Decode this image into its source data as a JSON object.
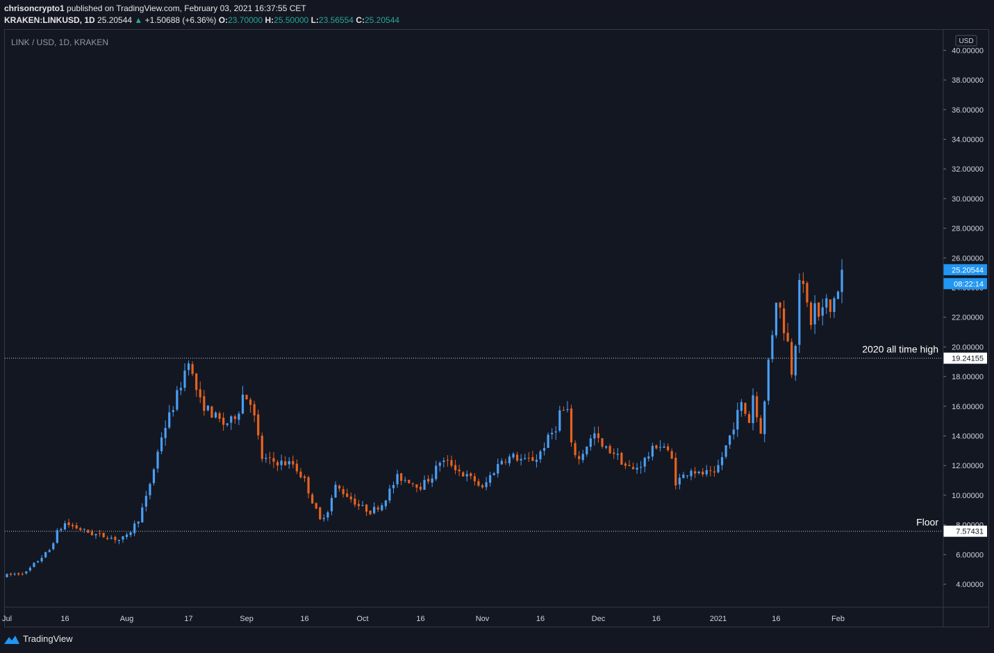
{
  "header": {
    "author": "chrisoncrypto1",
    "published_text": "published on TradingView.com, February 03, 2021 16:37:55 CET",
    "symbol": "KRAKEN:LINKUSD, 1D",
    "last": "25.20544",
    "change": "+1.50688 (+6.36%)",
    "o_label": "O:",
    "o_value": "23.70000",
    "h_label": "H:",
    "h_value": "25.50000",
    "l_label": "L:",
    "l_value": "23.56554",
    "c_label": "C:",
    "c_value": "25.20544"
  },
  "legend": "LINK / USD, 1D, KRAKEN",
  "currency_label": "USD",
  "footer": {
    "brand": "TradingView"
  },
  "colors": {
    "up": "#4a9ff5",
    "down": "#e8631f",
    "bg": "#131722",
    "axis_text": "#d1d4dc",
    "grid_border": "#363a45"
  },
  "chart_data": {
    "type": "candlestick",
    "title": "LINK / USD, 1D, KRAKEN",
    "ylim": [
      2.0,
      41.0
    ],
    "y_ticks": [
      "4.00000",
      "6.00000",
      "8.00000",
      "10.00000",
      "12.00000",
      "14.00000",
      "16.00000",
      "18.00000",
      "20.00000",
      "22.00000",
      "24.00000",
      "26.00000",
      "28.00000",
      "30.00000",
      "32.00000",
      "34.00000",
      "36.00000",
      "38.00000",
      "40.00000"
    ],
    "x_ticks": [
      {
        "label": "Jul",
        "day": 0
      },
      {
        "label": "16",
        "day": 15
      },
      {
        "label": "Aug",
        "day": 31
      },
      {
        "label": "17",
        "day": 47
      },
      {
        "label": "Sep",
        "day": 62
      },
      {
        "label": "16",
        "day": 77
      },
      {
        "label": "Oct",
        "day": 92
      },
      {
        "label": "16",
        "day": 107
      },
      {
        "label": "Nov",
        "day": 123
      },
      {
        "label": "16",
        "day": 138
      },
      {
        "label": "Dec",
        "day": 153
      },
      {
        "label": "16",
        "day": 168
      },
      {
        "label": "2021",
        "day": 184
      },
      {
        "label": "16",
        "day": 199
      },
      {
        "label": "Feb",
        "day": 215
      }
    ],
    "price_tag": {
      "value": "25.20544",
      "countdown": "08:22:14"
    },
    "levels": [
      {
        "name": "2020 all time high",
        "value": 19.24155,
        "value_label": "19.24155"
      },
      {
        "name": "Floor",
        "value": 7.57431,
        "value_label": "7.57431"
      }
    ],
    "anchors": [
      [
        0,
        4.6
      ],
      [
        5,
        4.8
      ],
      [
        8,
        5.6
      ],
      [
        11,
        6.3
      ],
      [
        13,
        7.5
      ],
      [
        15,
        8.1
      ],
      [
        18,
        7.8
      ],
      [
        22,
        7.4
      ],
      [
        26,
        7.2
      ],
      [
        29,
        7.0
      ],
      [
        31,
        7.2
      ],
      [
        34,
        8.4
      ],
      [
        36,
        9.8
      ],
      [
        38,
        11.8
      ],
      [
        40,
        14.0
      ],
      [
        43,
        16.0
      ],
      [
        45,
        17.5
      ],
      [
        47,
        19.3
      ],
      [
        48,
        18.0
      ],
      [
        50,
        16.3
      ],
      [
        53,
        15.5
      ],
      [
        56,
        14.8
      ],
      [
        58,
        15.0
      ],
      [
        60,
        15.8
      ],
      [
        61,
        16.8
      ],
      [
        63,
        16.4
      ],
      [
        64,
        15.2
      ],
      [
        66,
        12.5
      ],
      [
        68,
        12.3
      ],
      [
        71,
        12.2
      ],
      [
        74,
        12.1
      ],
      [
        77,
        11.0
      ],
      [
        79,
        9.6
      ],
      [
        81,
        8.3
      ],
      [
        83,
        9.0
      ],
      [
        85,
        10.6
      ],
      [
        88,
        10.0
      ],
      [
        91,
        9.3
      ],
      [
        94,
        8.9
      ],
      [
        97,
        9.4
      ],
      [
        99,
        10.3
      ],
      [
        101,
        11.2
      ],
      [
        104,
        11.0
      ],
      [
        107,
        10.6
      ],
      [
        110,
        11.3
      ],
      [
        112,
        12.3
      ],
      [
        115,
        12.1
      ],
      [
        118,
        11.4
      ],
      [
        121,
        11.0
      ],
      [
        123,
        10.4
      ],
      [
        125,
        11.3
      ],
      [
        128,
        12.4
      ],
      [
        131,
        12.6
      ],
      [
        134,
        12.3
      ],
      [
        137,
        12.5
      ],
      [
        140,
        13.8
      ],
      [
        142,
        14.6
      ],
      [
        143,
        15.6
      ],
      [
        145,
        15.7
      ],
      [
        146,
        13.3
      ],
      [
        148,
        12.4
      ],
      [
        150,
        13.4
      ],
      [
        152,
        14.1
      ],
      [
        154,
        13.2
      ],
      [
        157,
        12.9
      ],
      [
        160,
        12.0
      ],
      [
        162,
        11.7
      ],
      [
        164,
        12.1
      ],
      [
        166,
        12.7
      ],
      [
        168,
        13.4
      ],
      [
        170,
        13.3
      ],
      [
        172,
        12.4
      ],
      [
        173,
        10.9
      ],
      [
        175,
        11.3
      ],
      [
        177,
        11.8
      ],
      [
        179,
        11.4
      ],
      [
        181,
        11.5
      ],
      [
        183,
        11.3
      ],
      [
        185,
        12.6
      ],
      [
        187,
        14.0
      ],
      [
        189,
        15.5
      ],
      [
        190,
        16.1
      ],
      [
        192,
        15.0
      ],
      [
        193,
        16.8
      ],
      [
        194,
        15.3
      ],
      [
        195,
        14.4
      ],
      [
        196,
        16.2
      ],
      [
        197,
        19.1
      ],
      [
        198,
        21.0
      ],
      [
        199,
        23.3
      ],
      [
        200,
        22.5
      ],
      [
        201,
        21.3
      ],
      [
        202,
        20.3
      ],
      [
        203,
        18.4
      ],
      [
        204,
        20.5
      ],
      [
        205,
        24.9
      ],
      [
        206,
        23.8
      ],
      [
        207,
        22.8
      ],
      [
        208,
        21.7
      ],
      [
        209,
        22.8
      ],
      [
        210,
        22.0
      ],
      [
        212,
        23.0
      ],
      [
        213,
        22.3
      ],
      [
        214,
        23.4
      ],
      [
        215,
        23.7
      ],
      [
        216,
        25.2
      ]
    ],
    "series": [
      {
        "name": "LINKUSD",
        "values": "computed from anchors (daily close, Jul 1 2020 – Feb 3 2021)"
      }
    ]
  }
}
